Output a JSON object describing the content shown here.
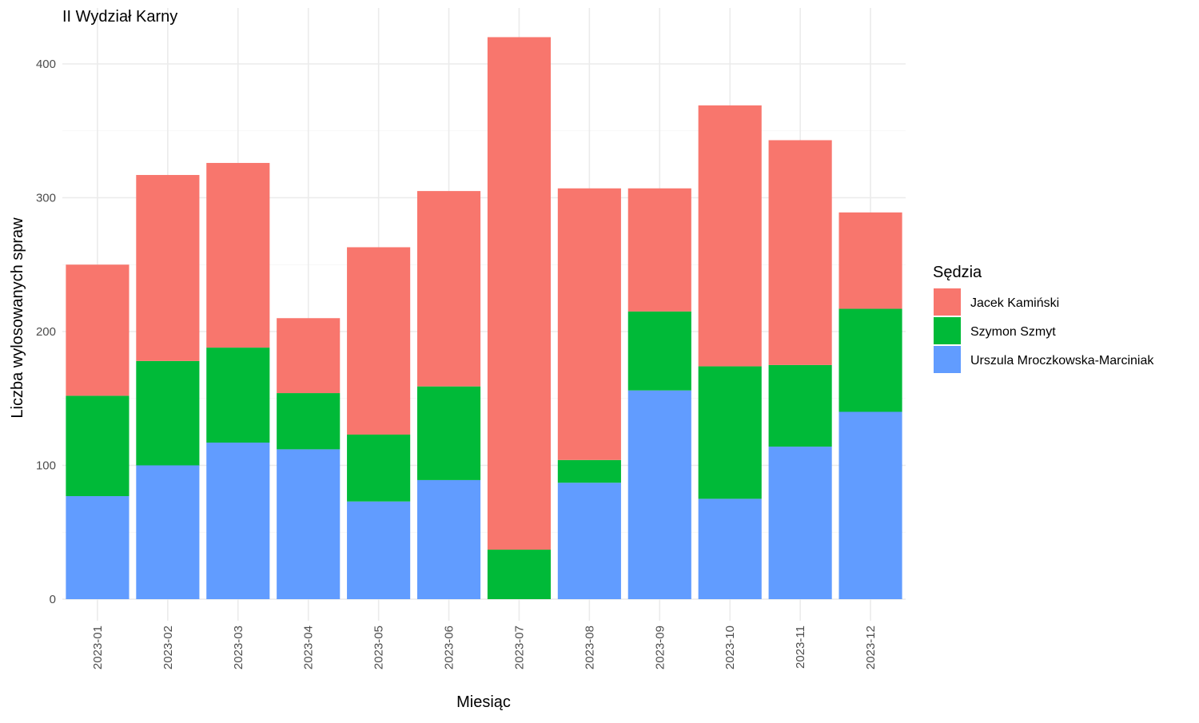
{
  "chart_data": {
    "type": "bar",
    "stacked": true,
    "title": "II Wydział Karny",
    "xlabel": "Miesiąc",
    "ylabel": "Liczba wylosowanych spraw",
    "ylim": [
      0,
      430
    ],
    "yticks": [
      0,
      100,
      200,
      300,
      400
    ],
    "grid": true,
    "legend": {
      "title": "Sędzia",
      "position": "right"
    },
    "categories": [
      "2023-01",
      "2023-02",
      "2023-03",
      "2023-04",
      "2023-05",
      "2023-06",
      "2023-07",
      "2023-08",
      "2023-09",
      "2023-10",
      "2023-11",
      "2023-12"
    ],
    "series": [
      {
        "name": "Urszula Mroczkowska-Marciniak",
        "color": "#619CFF",
        "values": [
          77,
          100,
          117,
          112,
          73,
          89,
          0,
          87,
          156,
          75,
          114,
          140
        ]
      },
      {
        "name": "Szymon Szmyt",
        "color": "#00BA38",
        "values": [
          75,
          78,
          71,
          42,
          50,
          70,
          37,
          17,
          59,
          99,
          61,
          77
        ]
      },
      {
        "name": "Jacek Kamiński",
        "color": "#F8766D",
        "values": [
          98,
          139,
          138,
          56,
          140,
          146,
          383,
          203,
          92,
          195,
          168,
          72
        ]
      }
    ],
    "legend_order": [
      "Jacek Kamiński",
      "Szymon Szmyt",
      "Urszula Mroczkowska-Marciniak"
    ]
  }
}
